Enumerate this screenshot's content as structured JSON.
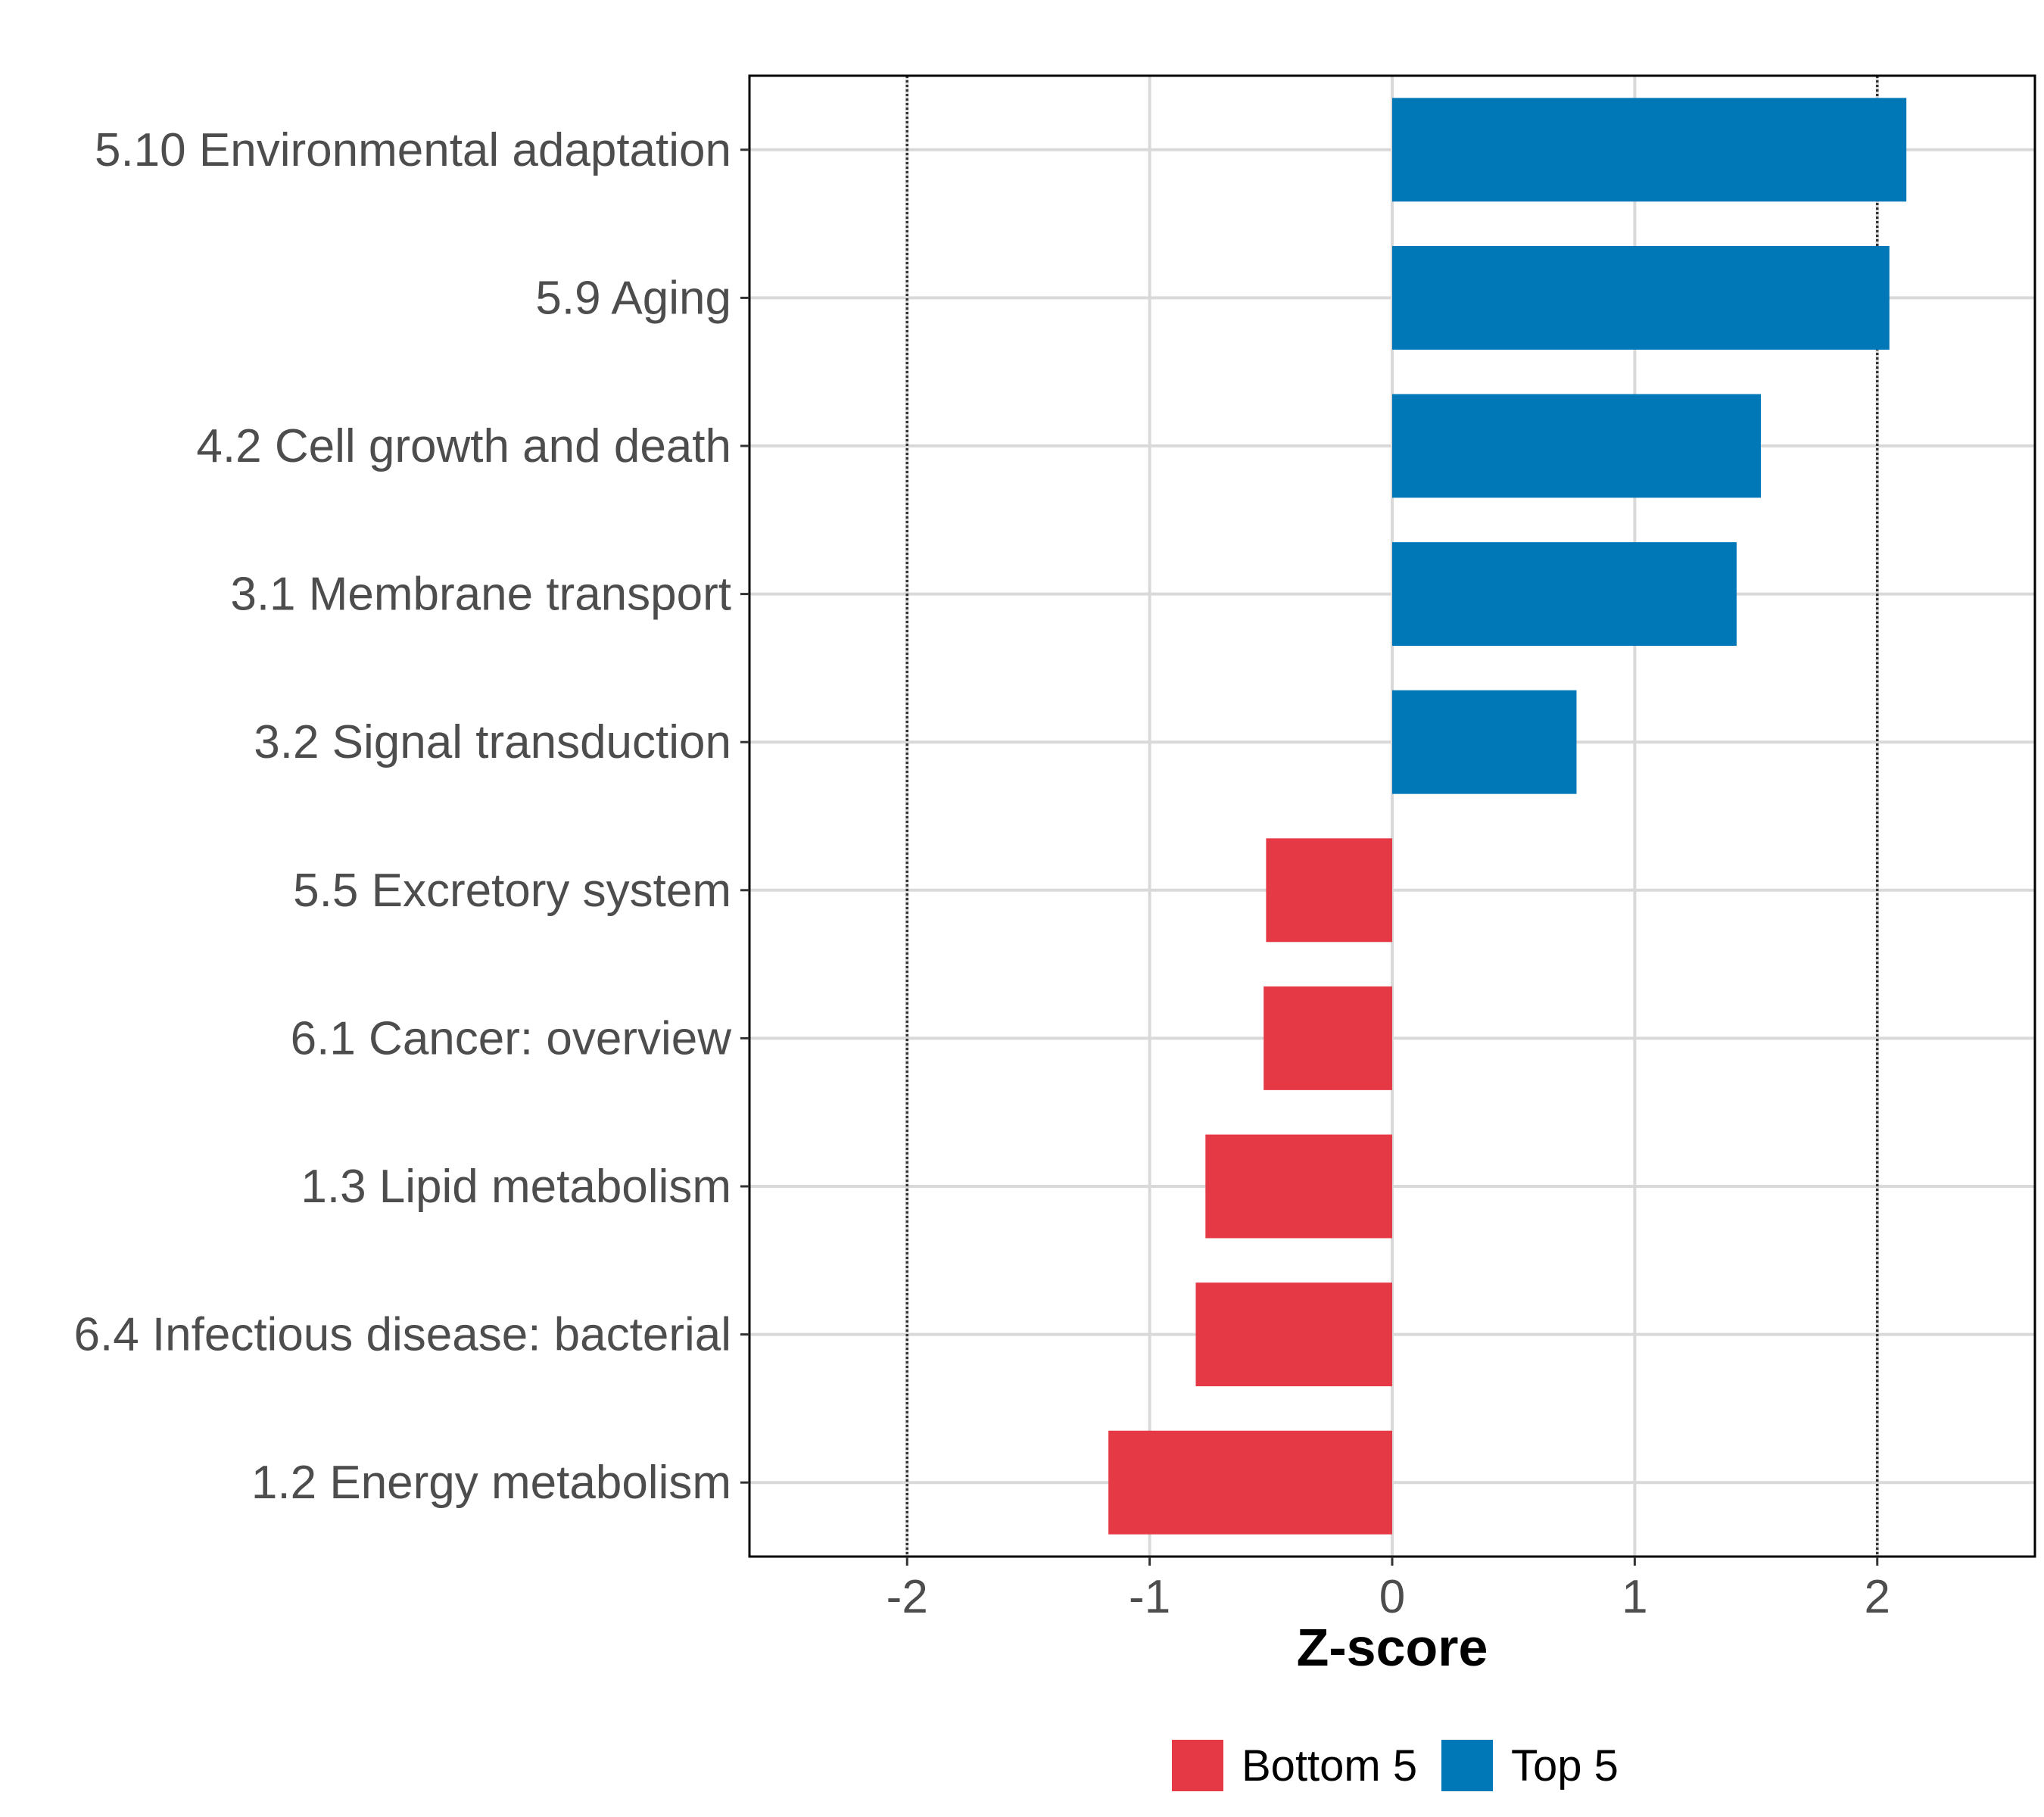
{
  "chart_data": {
    "type": "bar",
    "orientation": "horizontal",
    "title": "",
    "xlabel": "Z-score",
    "ylabel": "",
    "xlim": [
      -2.65,
      2.65
    ],
    "xticks": [
      -2,
      -1,
      0,
      1,
      2
    ],
    "xtick_labels": [
      "-2",
      "-1",
      "0",
      "1",
      "2"
    ],
    "reference_lines": [
      -2,
      2
    ],
    "grid": true,
    "categories": [
      "5.10 Environmental adaptation",
      "5.9 Aging",
      "4.2 Cell growth and death",
      "3.1 Membrane transport",
      "3.2 Signal transduction",
      "5.5 Excretory system",
      "6.1 Cancer: overview",
      "1.3 Lipid metabolism",
      "6.4 Infectious disease: bacterial",
      "1.2 Energy metabolism"
    ],
    "values": [
      2.12,
      2.05,
      1.52,
      1.42,
      0.76,
      -0.52,
      -0.53,
      -0.77,
      -0.81,
      -1.17
    ],
    "groups": [
      "Top 5",
      "Top 5",
      "Top 5",
      "Top 5",
      "Top 5",
      "Bottom 5",
      "Bottom 5",
      "Bottom 5",
      "Bottom 5",
      "Bottom 5"
    ],
    "legend": {
      "placement": "bottom",
      "entries": [
        {
          "label": "Bottom 5",
          "color": "#e63946"
        },
        {
          "label": "Top 5",
          "color": "#0077b6"
        }
      ]
    },
    "colors": {
      "Bottom 5": "#e63946",
      "Top 5": "#0077b6",
      "grid": "#d9d9d9",
      "axis": "#000000"
    }
  }
}
